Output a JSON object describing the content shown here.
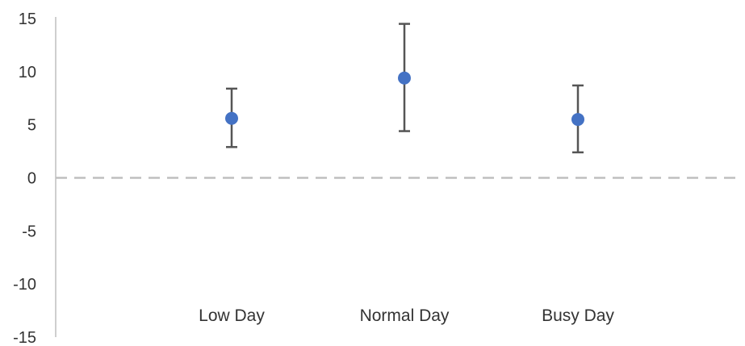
{
  "chart_data": {
    "type": "scatter",
    "title": "",
    "xlabel": "",
    "ylabel": "",
    "categories": [
      "Low Day",
      "Normal Day",
      "Busy Day"
    ],
    "y_ticks": [
      "15",
      "10",
      "5",
      "0",
      "-5",
      "-10",
      "-15"
    ],
    "ylim": [
      -15,
      15
    ],
    "series": [
      {
        "values": [
          5.6,
          9.4,
          5.5
        ],
        "error_low": [
          2.9,
          4.4,
          2.4
        ],
        "error_high": [
          8.4,
          14.5,
          8.7
        ]
      }
    ],
    "reference_line": {
      "y": 0,
      "style": "dashed"
    },
    "grid": false,
    "legend": "none",
    "colors": {
      "point": "#4472C4",
      "error_bar": "#555555",
      "reference_line": "#BFBFBF",
      "axis": "#BFBFBF"
    }
  }
}
